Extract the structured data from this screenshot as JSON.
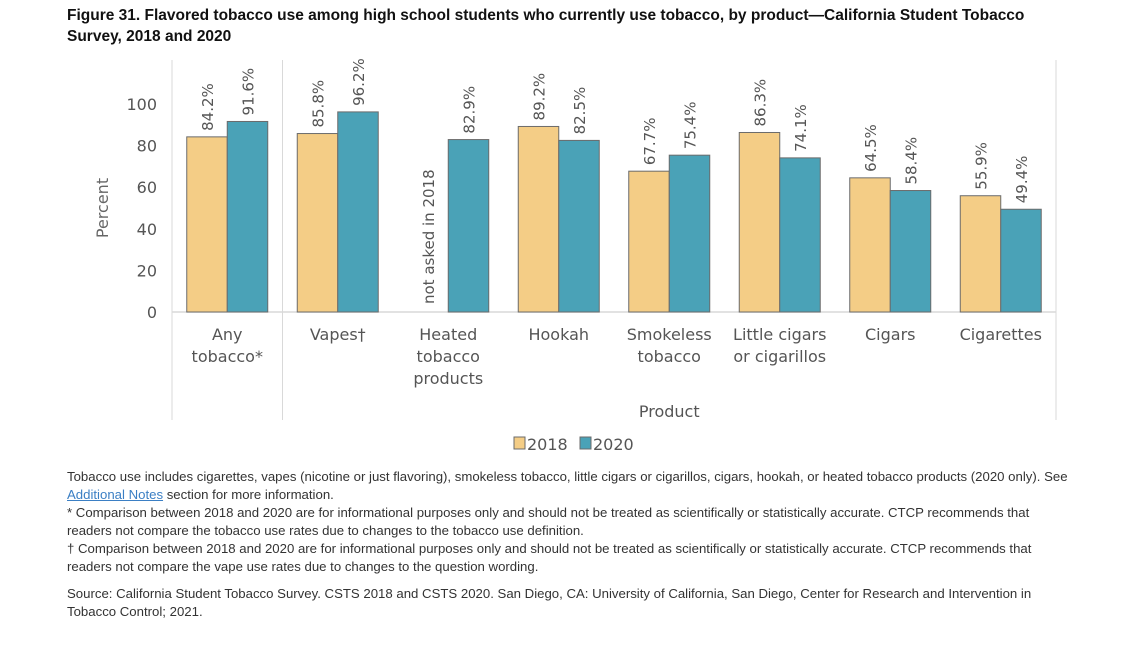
{
  "title": "Figure 31. Flavored tobacco use among high school students who currently use tobacco, by product—California Student Tobacco Survey, 2018 and 2020",
  "chart_data": {
    "type": "bar",
    "title": "Figure 31. Flavored tobacco use among high school students who currently use tobacco, by product—California Student Tobacco Survey, 2018 and 2020",
    "categories": [
      [
        "Any",
        "tobacco*"
      ],
      [
        "Vapes†"
      ],
      [
        "Heated",
        "tobacco",
        "products"
      ],
      [
        "Hookah"
      ],
      [
        "Smokeless",
        "tobacco"
      ],
      [
        "Little cigars",
        "or cigarillos"
      ],
      [
        "Cigars"
      ],
      [
        "Cigarettes"
      ]
    ],
    "series": [
      {
        "name": "2018",
        "color": "#f4cd86",
        "values": [
          84.2,
          85.8,
          null,
          89.2,
          67.7,
          86.3,
          64.5,
          55.9
        ],
        "labels": [
          "84.2%",
          "85.8%",
          "not asked in 2018",
          "89.2%",
          "67.7%",
          "86.3%",
          "64.5%",
          "55.9%"
        ]
      },
      {
        "name": "2020",
        "color": "#4aa2b7",
        "values": [
          91.6,
          96.2,
          82.9,
          82.5,
          75.4,
          74.1,
          58.4,
          49.4
        ],
        "labels": [
          "91.6%",
          "96.2%",
          "82.9%",
          "82.5%",
          "75.4%",
          "74.1%",
          "58.4%",
          "49.4%"
        ]
      }
    ],
    "xlabel": "Product",
    "ylabel": "Percent",
    "ylim": [
      0,
      100
    ],
    "yticks": [
      "0",
      "20",
      "40",
      "60",
      "80",
      "100"
    ],
    "grid": false,
    "legend": "bottom"
  },
  "notes": {
    "line1_pre": "Tobacco use includes cigarettes, vapes (nicotine or just flavoring), smokeless tobacco, little cigars or cigarillos, cigars, hookah, or heated tobacco products (2020 only). See ",
    "link": "Additional Notes",
    "line1_post": " section for more information.",
    "star": "* Comparison between 2018 and 2020 are for informational purposes only and should not be treated as scientifically or statistically accurate. CTCP recommends that readers not compare the tobacco use rates due to changes to the tobacco use definition.",
    "dagger": "† Comparison between 2018 and 2020 are for informational purposes only and should not be treated as scientifically or statistically accurate. CTCP recommends that readers not compare the vape use rates due to changes to the question wording.",
    "source": "Source: California Student Tobacco Survey. CSTS 2018 and CSTS 2020. San Diego, CA: University of California, San Diego, Center for Research and Intervention in Tobacco Control; 2021."
  }
}
